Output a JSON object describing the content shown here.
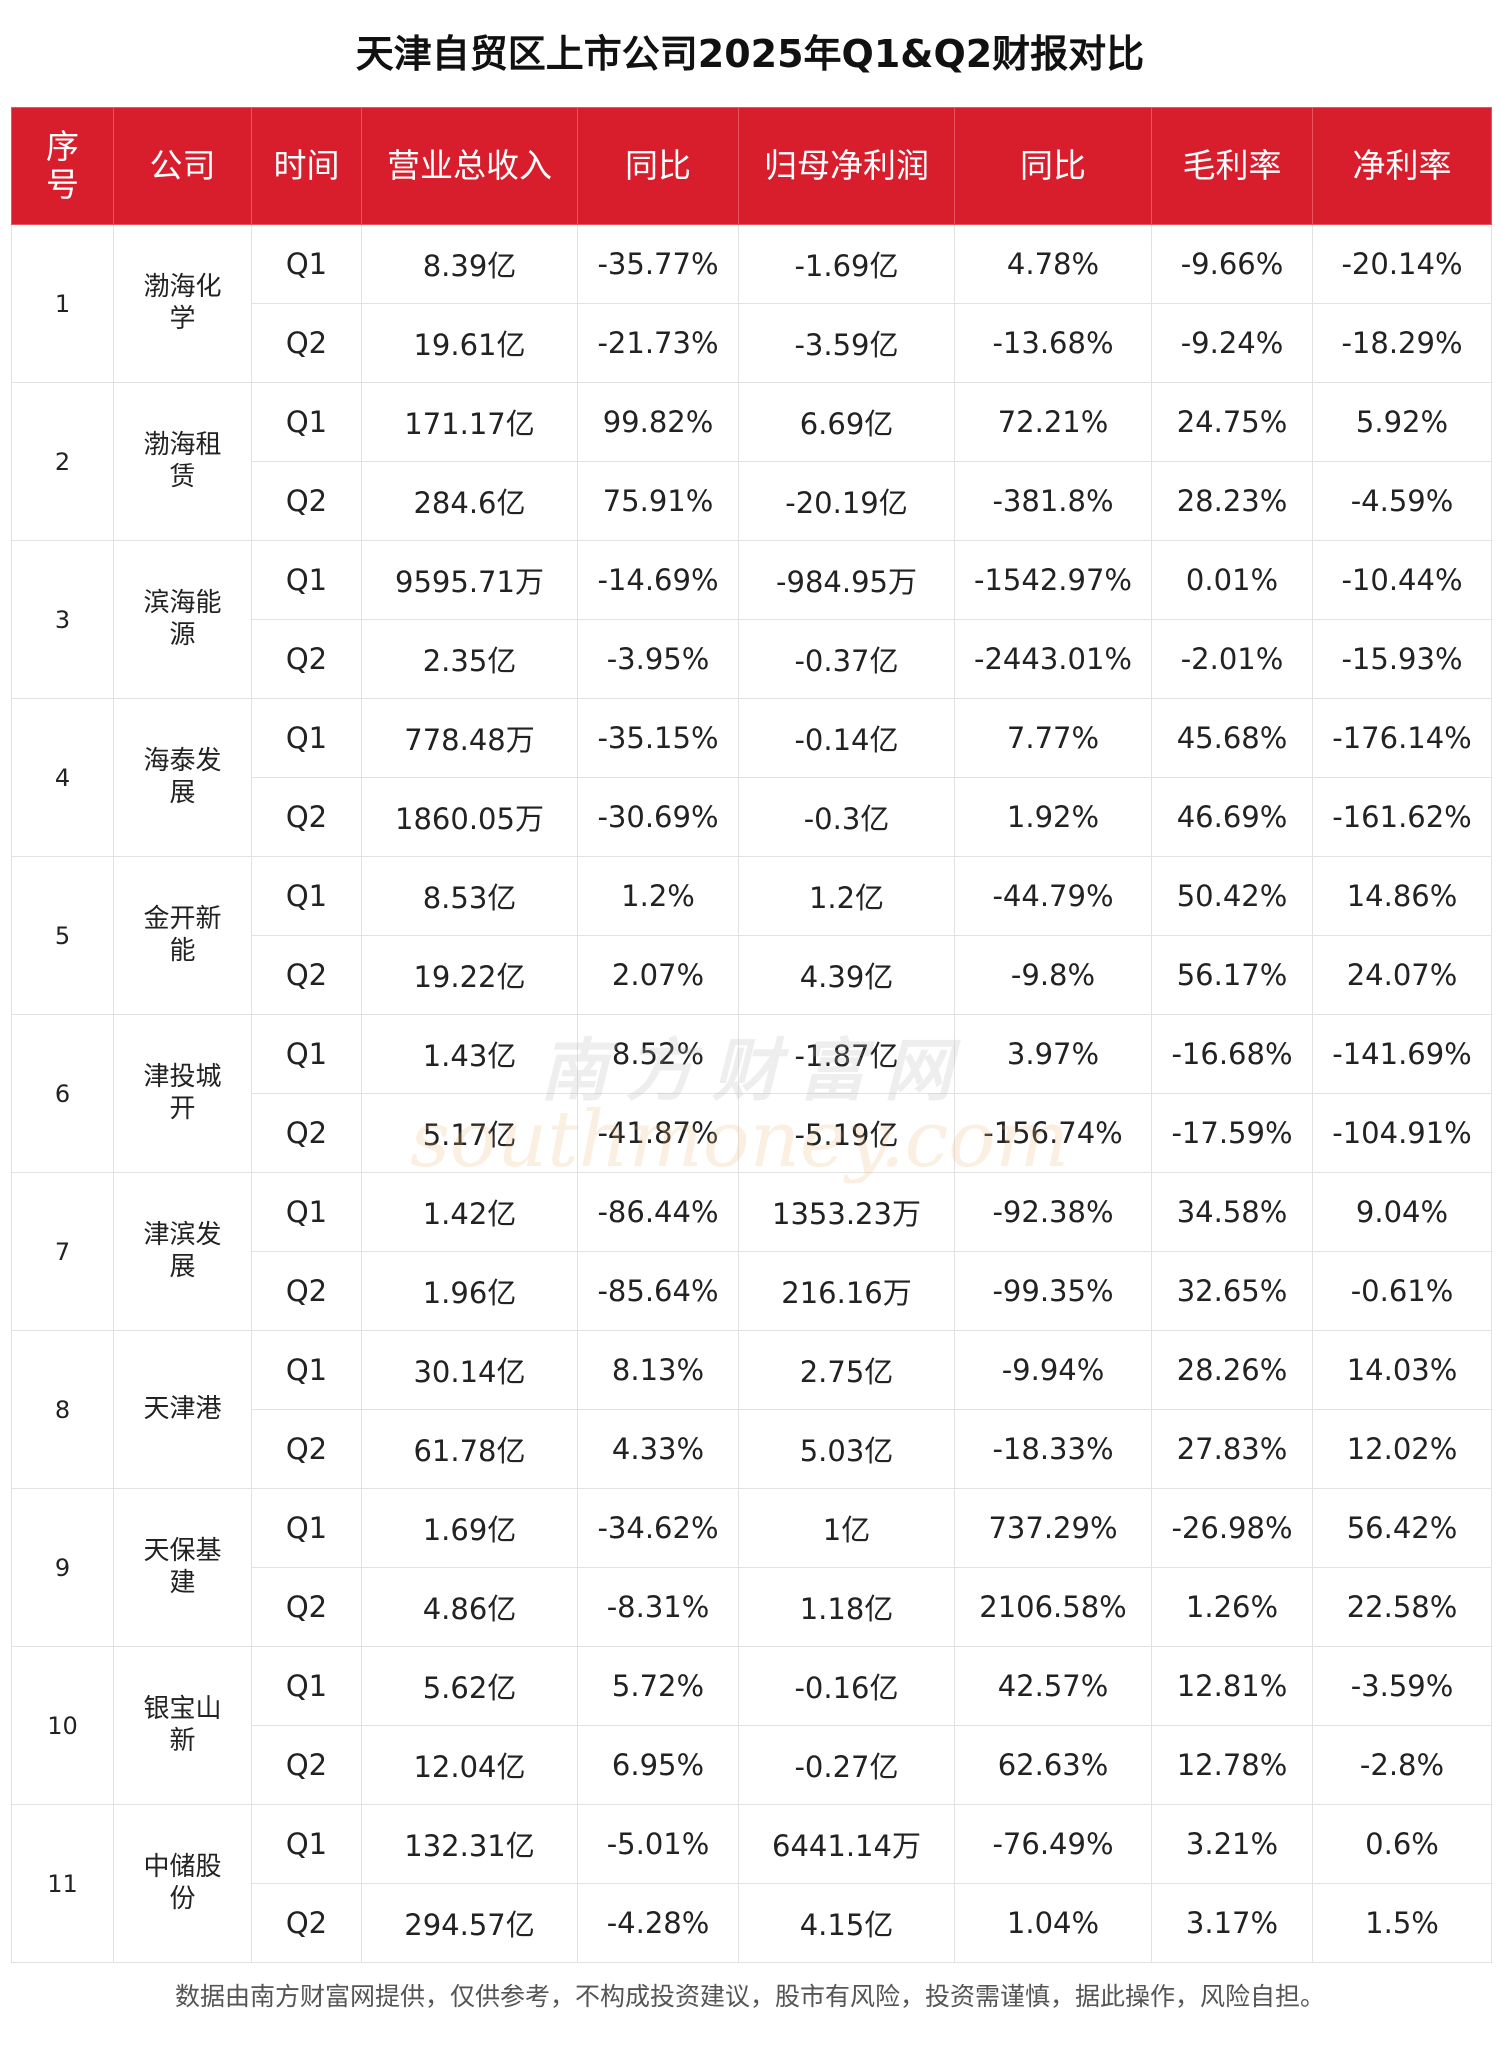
{
  "title": "天津自贸区上市公司2025年Q1&Q2财报对比",
  "headers": [
    "序号",
    "公司",
    "时间",
    "营业总收入",
    "同比",
    "归母净利润",
    "同比",
    "毛利率",
    "净利率"
  ],
  "companies": [
    {
      "seq": "1",
      "name": "渤海化学",
      "rows": [
        {
          "period": "Q1",
          "revenue": "8.39亿",
          "revenue_yoy": "-35.77%",
          "profit": "-1.69亿",
          "profit_yoy": "4.78%",
          "gross_margin": "-9.66%",
          "net_margin": "-20.14%"
        },
        {
          "period": "Q2",
          "revenue": "19.61亿",
          "revenue_yoy": "-21.73%",
          "profit": "-3.59亿",
          "profit_yoy": "-13.68%",
          "gross_margin": "-9.24%",
          "net_margin": "-18.29%"
        }
      ]
    },
    {
      "seq": "2",
      "name": "渤海租赁",
      "rows": [
        {
          "period": "Q1",
          "revenue": "171.17亿",
          "revenue_yoy": "99.82%",
          "profit": "6.69亿",
          "profit_yoy": "72.21%",
          "gross_margin": "24.75%",
          "net_margin": "5.92%"
        },
        {
          "period": "Q2",
          "revenue": "284.6亿",
          "revenue_yoy": "75.91%",
          "profit": "-20.19亿",
          "profit_yoy": "-381.8%",
          "gross_margin": "28.23%",
          "net_margin": "-4.59%"
        }
      ]
    },
    {
      "seq": "3",
      "name": "滨海能源",
      "rows": [
        {
          "period": "Q1",
          "revenue": "9595.71万",
          "revenue_yoy": "-14.69%",
          "profit": "-984.95万",
          "profit_yoy": "-1542.97%",
          "gross_margin": "0.01%",
          "net_margin": "-10.44%"
        },
        {
          "period": "Q2",
          "revenue": "2.35亿",
          "revenue_yoy": "-3.95%",
          "profit": "-0.37亿",
          "profit_yoy": "-2443.01%",
          "gross_margin": "-2.01%",
          "net_margin": "-15.93%"
        }
      ]
    },
    {
      "seq": "4",
      "name": "海泰发展",
      "rows": [
        {
          "period": "Q1",
          "revenue": "778.48万",
          "revenue_yoy": "-35.15%",
          "profit": "-0.14亿",
          "profit_yoy": "7.77%",
          "gross_margin": "45.68%",
          "net_margin": "-176.14%"
        },
        {
          "period": "Q2",
          "revenue": "1860.05万",
          "revenue_yoy": "-30.69%",
          "profit": "-0.3亿",
          "profit_yoy": "1.92%",
          "gross_margin": "46.69%",
          "net_margin": "-161.62%"
        }
      ]
    },
    {
      "seq": "5",
      "name": "金开新能",
      "rows": [
        {
          "period": "Q1",
          "revenue": "8.53亿",
          "revenue_yoy": "1.2%",
          "profit": "1.2亿",
          "profit_yoy": "-44.79%",
          "gross_margin": "50.42%",
          "net_margin": "14.86%"
        },
        {
          "period": "Q2",
          "revenue": "19.22亿",
          "revenue_yoy": "2.07%",
          "profit": "4.39亿",
          "profit_yoy": "-9.8%",
          "gross_margin": "56.17%",
          "net_margin": "24.07%"
        }
      ]
    },
    {
      "seq": "6",
      "name": "津投城开",
      "rows": [
        {
          "period": "Q1",
          "revenue": "1.43亿",
          "revenue_yoy": "8.52%",
          "profit": "-1.87亿",
          "profit_yoy": "3.97%",
          "gross_margin": "-16.68%",
          "net_margin": "-141.69%"
        },
        {
          "period": "Q2",
          "revenue": "5.17亿",
          "revenue_yoy": "-41.87%",
          "profit": "-5.19亿",
          "profit_yoy": "-156.74%",
          "gross_margin": "-17.59%",
          "net_margin": "-104.91%"
        }
      ]
    },
    {
      "seq": "7",
      "name": "津滨发展",
      "rows": [
        {
          "period": "Q1",
          "revenue": "1.42亿",
          "revenue_yoy": "-86.44%",
          "profit": "1353.23万",
          "profit_yoy": "-92.38%",
          "gross_margin": "34.58%",
          "net_margin": "9.04%"
        },
        {
          "period": "Q2",
          "revenue": "1.96亿",
          "revenue_yoy": "-85.64%",
          "profit": "216.16万",
          "profit_yoy": "-99.35%",
          "gross_margin": "32.65%",
          "net_margin": "-0.61%"
        }
      ]
    },
    {
      "seq": "8",
      "name": "天津港",
      "rows": [
        {
          "period": "Q1",
          "revenue": "30.14亿",
          "revenue_yoy": "8.13%",
          "profit": "2.75亿",
          "profit_yoy": "-9.94%",
          "gross_margin": "28.26%",
          "net_margin": "14.03%"
        },
        {
          "period": "Q2",
          "revenue": "61.78亿",
          "revenue_yoy": "4.33%",
          "profit": "5.03亿",
          "profit_yoy": "-18.33%",
          "gross_margin": "27.83%",
          "net_margin": "12.02%"
        }
      ]
    },
    {
      "seq": "9",
      "name": "天保基建",
      "rows": [
        {
          "period": "Q1",
          "revenue": "1.69亿",
          "revenue_yoy": "-34.62%",
          "profit": "1亿",
          "profit_yoy": "737.29%",
          "gross_margin": "-26.98%",
          "net_margin": "56.42%"
        },
        {
          "period": "Q2",
          "revenue": "4.86亿",
          "revenue_yoy": "-8.31%",
          "profit": "1.18亿",
          "profit_yoy": "2106.58%",
          "gross_margin": "1.26%",
          "net_margin": "22.58%"
        }
      ]
    },
    {
      "seq": "10",
      "name": "银宝山新",
      "rows": [
        {
          "period": "Q1",
          "revenue": "5.62亿",
          "revenue_yoy": "5.72%",
          "profit": "-0.16亿",
          "profit_yoy": "42.57%",
          "gross_margin": "12.81%",
          "net_margin": "-3.59%"
        },
        {
          "period": "Q2",
          "revenue": "12.04亿",
          "revenue_yoy": "6.95%",
          "profit": "-0.27亿",
          "profit_yoy": "62.63%",
          "gross_margin": "12.78%",
          "net_margin": "-2.8%"
        }
      ]
    },
    {
      "seq": "11",
      "name": "中储股份",
      "rows": [
        {
          "period": "Q1",
          "revenue": "132.31亿",
          "revenue_yoy": "-5.01%",
          "profit": "6441.14万",
          "profit_yoy": "-76.49%",
          "gross_margin": "3.21%",
          "net_margin": "0.6%"
        },
        {
          "period": "Q2",
          "revenue": "294.57亿",
          "revenue_yoy": "-4.28%",
          "profit": "4.15亿",
          "profit_yoy": "1.04%",
          "gross_margin": "3.17%",
          "net_margin": "1.5%"
        }
      ]
    }
  ],
  "watermark": {
    "cn": "南方财富网",
    "en": "southmoney.com"
  },
  "footer": "数据由南方财富网提供，仅供参考，不构成投资建议，股市有风险，投资需谨慎，据此操作，风险自担。",
  "colors": {
    "header_bg": "#d81e2c",
    "header_text": "#ffffff",
    "border": "#e2e2e2"
  }
}
